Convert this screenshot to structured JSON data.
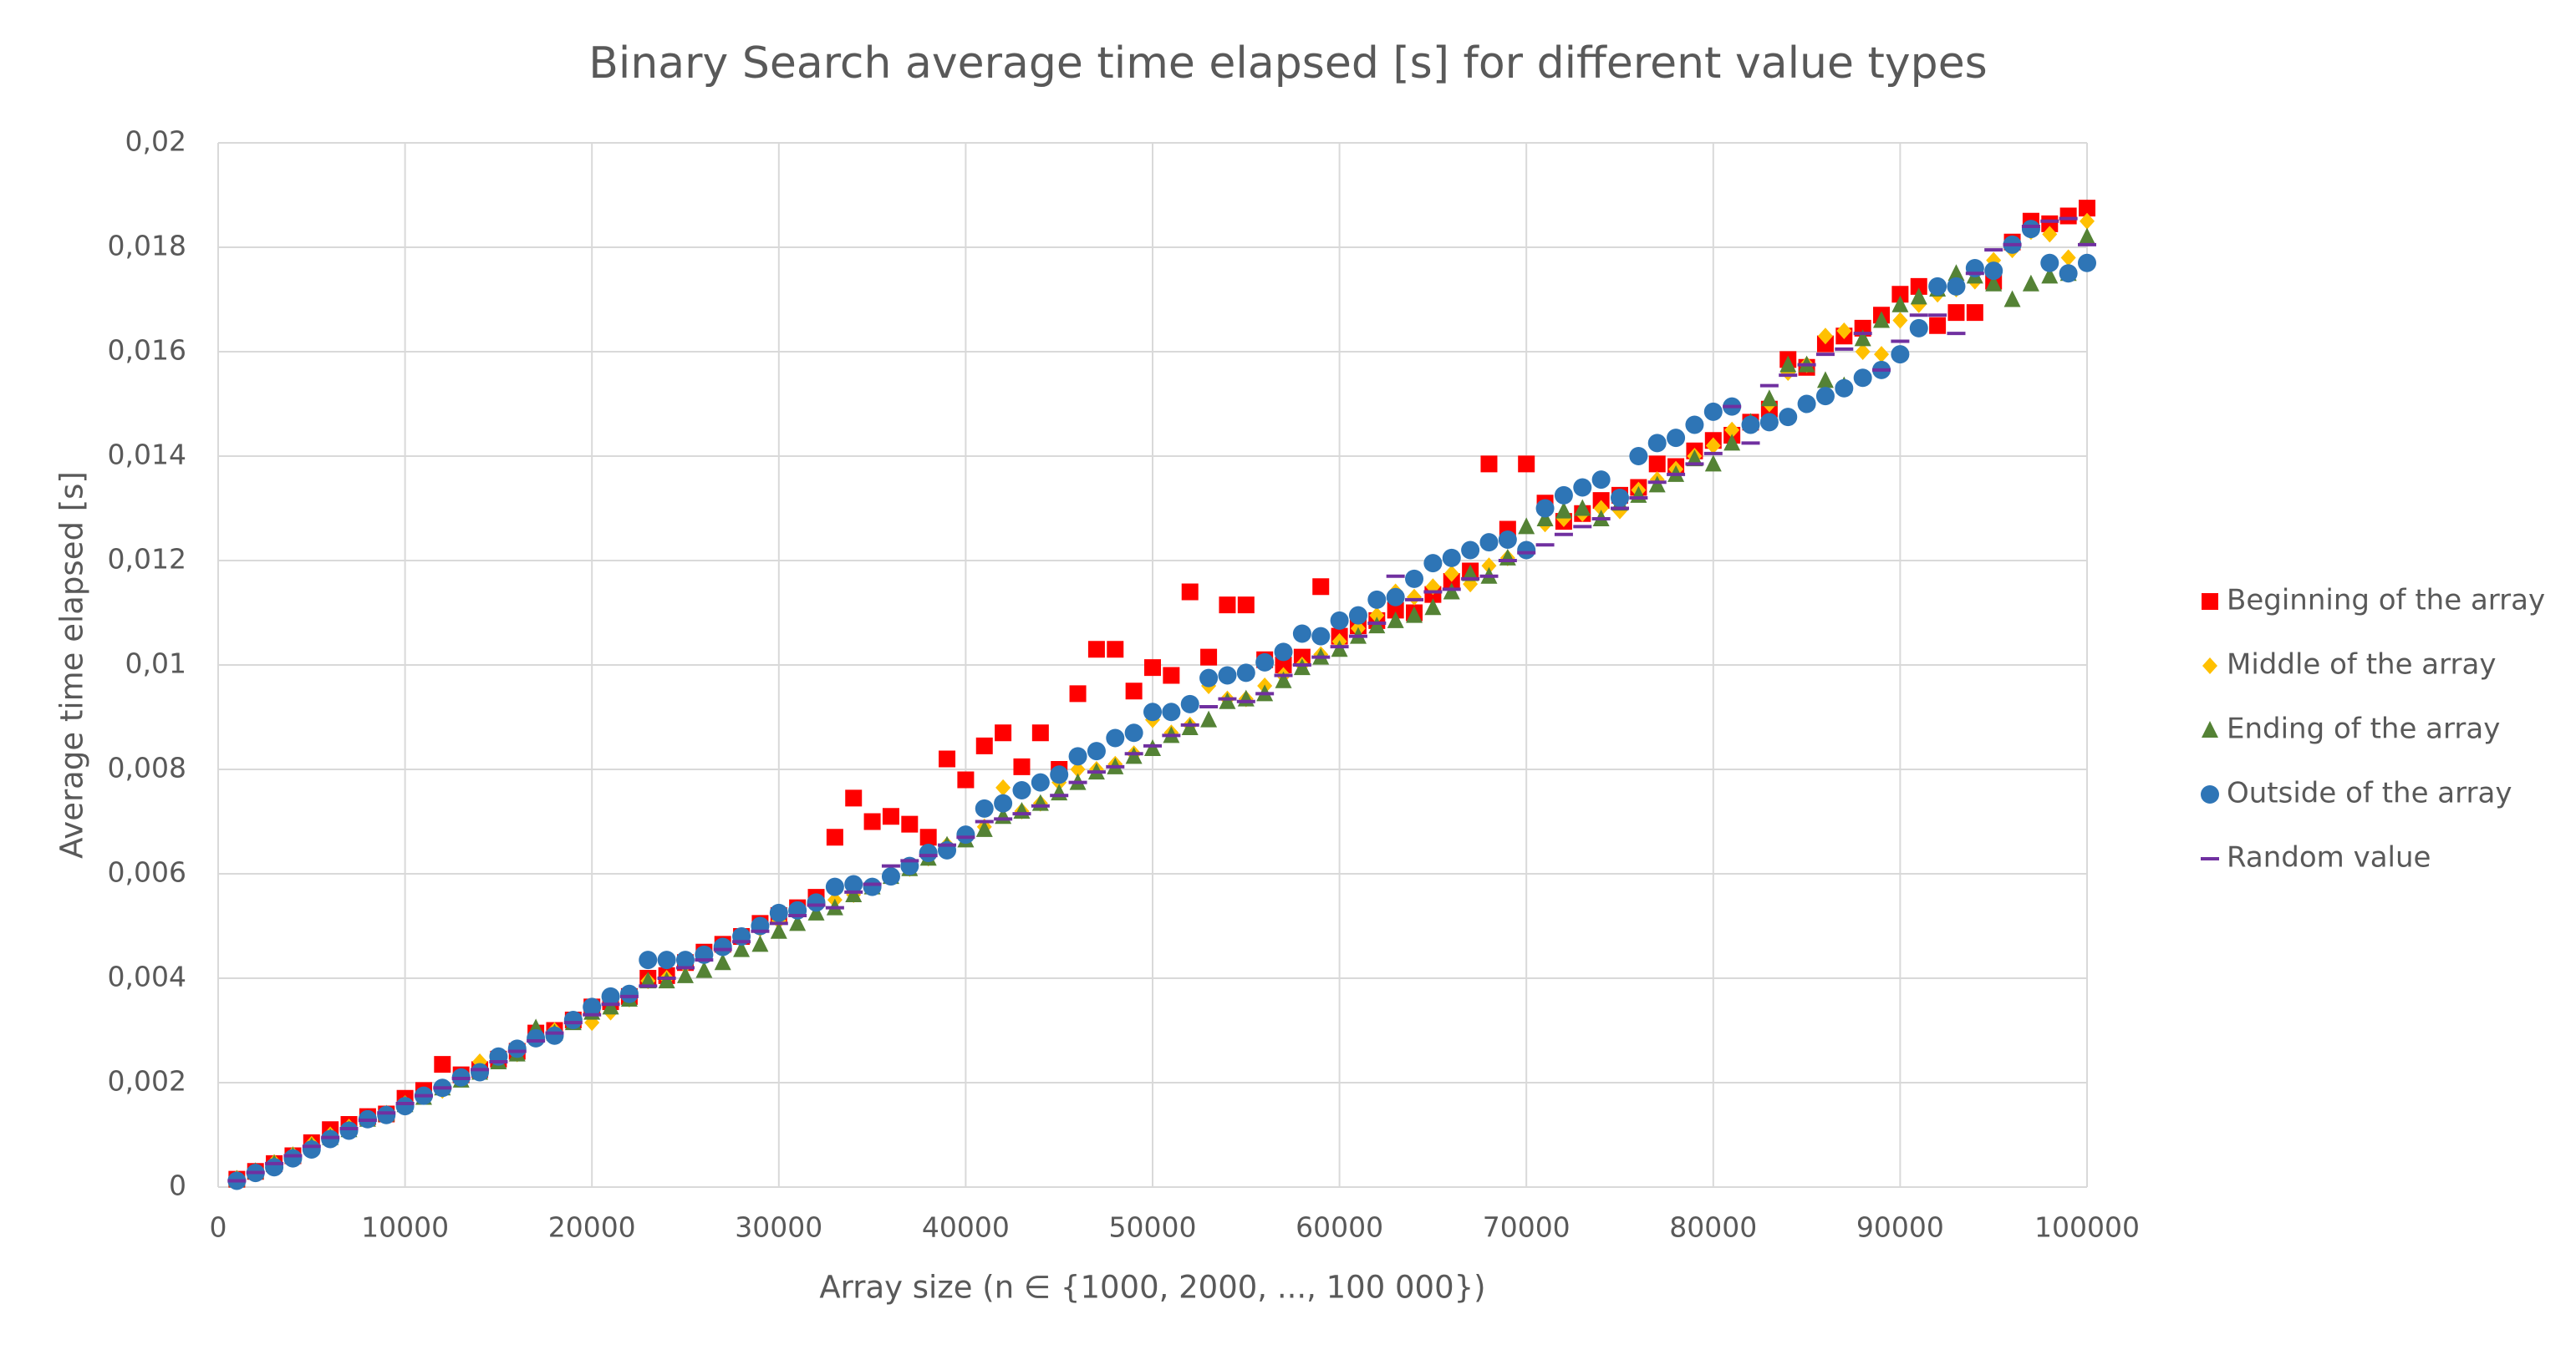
{
  "chart_data": {
    "type": "scatter",
    "title": "Binary Search average time elapsed [s] for different value types",
    "x_label": "Array size (n ∈ {1000, 2000, ..., 100 000})",
    "y_label": "Average time elapsed [s]",
    "grid": true,
    "legend": "right",
    "xlim": [
      0,
      100000
    ],
    "xticks": [
      0,
      10000,
      20000,
      30000,
      40000,
      50000,
      60000,
      70000,
      80000,
      90000,
      100000
    ],
    "ylim": [
      0,
      0.02
    ],
    "yticks": [
      0,
      {
        "value": 0.002,
        "label": "0,002"
      },
      {
        "value": 0.004,
        "label": "0,004"
      },
      {
        "value": 0.006,
        "label": "0,006"
      },
      {
        "value": 0.008,
        "label": "0,008"
      },
      {
        "value": 0.01,
        "label": "0,01"
      },
      {
        "value": 0.012,
        "label": "0,012"
      },
      {
        "value": 0.014,
        "label": "0,014"
      },
      {
        "value": 0.016,
        "label": "0,016"
      },
      {
        "value": 0.018,
        "label": "0,018"
      },
      {
        "value": 0.02,
        "label": "0,02"
      }
    ],
    "x": [
      1000,
      2000,
      3000,
      4000,
      5000,
      6000,
      7000,
      8000,
      9000,
      10000,
      11000,
      12000,
      13000,
      14000,
      15000,
      16000,
      17000,
      18000,
      19000,
      20000,
      21000,
      22000,
      23000,
      24000,
      25000,
      26000,
      27000,
      28000,
      29000,
      30000,
      31000,
      32000,
      33000,
      34000,
      35000,
      36000,
      37000,
      38000,
      39000,
      40000,
      41000,
      42000,
      43000,
      44000,
      45000,
      46000,
      47000,
      48000,
      49000,
      50000,
      51000,
      52000,
      53000,
      54000,
      55000,
      56000,
      57000,
      58000,
      59000,
      60000,
      61000,
      62000,
      63000,
      64000,
      65000,
      66000,
      67000,
      68000,
      69000,
      70000,
      71000,
      72000,
      73000,
      74000,
      75000,
      76000,
      77000,
      78000,
      79000,
      80000,
      81000,
      82000,
      83000,
      84000,
      85000,
      86000,
      87000,
      88000,
      89000,
      90000,
      91000,
      92000,
      93000,
      94000,
      95000,
      96000,
      97000,
      98000,
      99000,
      100000
    ],
    "series": [
      {
        "name": "Beginning of the array",
        "color": "#ff0000",
        "marker": "square",
        "values": [
          0.00015,
          0.0003,
          0.00045,
          0.0006,
          0.00085,
          0.0011,
          0.0012,
          0.00135,
          0.0014,
          0.0017,
          0.00185,
          0.00235,
          0.00215,
          0.00225,
          0.00245,
          0.0026,
          0.00295,
          0.003,
          0.0032,
          0.00345,
          0.00355,
          0.00365,
          0.004,
          0.00405,
          0.0043,
          0.0045,
          0.00465,
          0.0048,
          0.00505,
          0.0052,
          0.00535,
          0.00555,
          0.0067,
          0.00745,
          0.007,
          0.0071,
          0.00695,
          0.0067,
          0.0082,
          0.0078,
          0.00845,
          0.0087,
          0.00805,
          0.0087,
          0.008,
          0.00945,
          0.0103,
          0.0103,
          0.0095,
          0.00995,
          0.0098,
          0.0114,
          0.01015,
          0.01115,
          0.01115,
          0.0101,
          0.01,
          0.01015,
          0.0115,
          0.01055,
          0.01075,
          0.01085,
          0.01105,
          0.011,
          0.01135,
          0.0116,
          0.0118,
          0.01385,
          0.0126,
          0.01385,
          0.0131,
          0.01275,
          0.0129,
          0.01315,
          0.01325,
          0.0134,
          0.01385,
          0.0138,
          0.0141,
          0.0143,
          0.0144,
          0.01465,
          0.0149,
          0.01585,
          0.0157,
          0.01615,
          0.0163,
          0.01645,
          0.0167,
          0.0171,
          0.01725,
          0.0165,
          0.01675,
          0.01675,
          0.01735,
          0.0181,
          0.0185,
          0.01845,
          0.0186,
          0.01875
        ]
      },
      {
        "name": "Middle of the array",
        "color": "#ffc000",
        "marker": "diamond",
        "values": [
          0.00017,
          0.0003,
          0.00047,
          0.00062,
          0.00082,
          0.001,
          0.00115,
          0.0013,
          0.0014,
          0.0016,
          0.00175,
          0.00185,
          0.0021,
          0.0024,
          0.00245,
          0.00255,
          0.00285,
          0.003,
          0.0032,
          0.00315,
          0.00335,
          0.0036,
          0.00395,
          0.004,
          0.00425,
          0.00445,
          0.0046,
          0.00475,
          0.00495,
          0.0051,
          0.0053,
          0.00545,
          0.0055,
          0.0056,
          0.00575,
          0.00595,
          0.0061,
          0.0063,
          0.00655,
          0.00675,
          0.0069,
          0.00765,
          0.0072,
          0.00735,
          0.00775,
          0.008,
          0.008,
          0.0081,
          0.0083,
          0.00895,
          0.0087,
          0.00885,
          0.0096,
          0.00935,
          0.00935,
          0.0096,
          0.0098,
          0.01,
          0.0102,
          0.01045,
          0.0107,
          0.01095,
          0.0114,
          0.0113,
          0.0115,
          0.01175,
          0.01155,
          0.0119,
          0.01205,
          0.0122,
          0.0127,
          0.0128,
          0.0129,
          0.013,
          0.01295,
          0.01335,
          0.01355,
          0.01375,
          0.014,
          0.0142,
          0.0145,
          0.01465,
          0.015,
          0.0156,
          0.01575,
          0.0163,
          0.0164,
          0.016,
          0.01595,
          0.0166,
          0.0169,
          0.0171,
          0.0172,
          0.01735,
          0.01775,
          0.01795,
          0.0183,
          0.01825,
          0.0178,
          0.0185
        ]
      },
      {
        "name": "Ending of the array",
        "color": "#548235",
        "marker": "triangle",
        "values": [
          0.00015,
          0.0003,
          0.00045,
          0.0006,
          0.00078,
          0.00095,
          0.0011,
          0.0013,
          0.0014,
          0.00158,
          0.00172,
          0.0019,
          0.00205,
          0.0022,
          0.0024,
          0.00255,
          0.00305,
          0.00295,
          0.00315,
          0.00335,
          0.00345,
          0.0036,
          0.00395,
          0.00395,
          0.00405,
          0.00415,
          0.0043,
          0.00455,
          0.00465,
          0.0049,
          0.00505,
          0.00525,
          0.00535,
          0.0056,
          0.00575,
          0.00595,
          0.0061,
          0.0063,
          0.00655,
          0.00665,
          0.00685,
          0.0071,
          0.0072,
          0.00735,
          0.00755,
          0.00775,
          0.00795,
          0.00805,
          0.00825,
          0.0084,
          0.00865,
          0.0088,
          0.00895,
          0.0093,
          0.00935,
          0.00945,
          0.0097,
          0.00995,
          0.01015,
          0.0103,
          0.01055,
          0.01075,
          0.01085,
          0.01095,
          0.0111,
          0.0114,
          0.01175,
          0.0117,
          0.01205,
          0.01265,
          0.0128,
          0.01295,
          0.013,
          0.0128,
          0.0131,
          0.01325,
          0.01345,
          0.01365,
          0.01395,
          0.01385,
          0.01425,
          0.01465,
          0.0151,
          0.01575,
          0.01575,
          0.01545,
          0.01535,
          0.01625,
          0.0166,
          0.0169,
          0.01705,
          0.0172,
          0.0175,
          0.01745,
          0.0173,
          0.017,
          0.0173,
          0.01745,
          0.0175,
          0.0182
        ]
      },
      {
        "name": "Outside of the array",
        "color": "#2e75b6",
        "marker": "circle",
        "values": [
          0.00012,
          0.00027,
          0.00038,
          0.00055,
          0.00072,
          0.00092,
          0.00108,
          0.0013,
          0.00138,
          0.00155,
          0.00175,
          0.0019,
          0.0021,
          0.0022,
          0.0025,
          0.00265,
          0.00285,
          0.0029,
          0.0032,
          0.00345,
          0.00365,
          0.0037,
          0.00435,
          0.00435,
          0.00435,
          0.00445,
          0.0046,
          0.0048,
          0.005,
          0.00525,
          0.0053,
          0.00545,
          0.00575,
          0.0058,
          0.00575,
          0.00595,
          0.00615,
          0.0064,
          0.00645,
          0.00675,
          0.00725,
          0.00735,
          0.0076,
          0.00775,
          0.0079,
          0.00825,
          0.00835,
          0.0086,
          0.0087,
          0.0091,
          0.0091,
          0.00925,
          0.00975,
          0.0098,
          0.00985,
          0.01005,
          0.01025,
          0.0106,
          0.01055,
          0.01085,
          0.01095,
          0.01125,
          0.0113,
          0.01165,
          0.01195,
          0.01205,
          0.0122,
          0.01235,
          0.0124,
          0.0122,
          0.013,
          0.01325,
          0.0134,
          0.01355,
          0.0132,
          0.014,
          0.01425,
          0.01435,
          0.0146,
          0.01485,
          0.01495,
          0.0146,
          0.01465,
          0.01475,
          0.015,
          0.01515,
          0.0153,
          0.0155,
          0.01565,
          0.01595,
          0.01645,
          0.01725,
          0.01725,
          0.0176,
          0.01755,
          0.01805,
          0.01835,
          0.0177,
          0.0175,
          0.0177
        ]
      },
      {
        "name": "Random value",
        "color": "#7030a0",
        "marker": "dash",
        "values": [
          0.00012,
          0.00028,
          0.00045,
          0.0006,
          0.00078,
          0.00095,
          0.00112,
          0.00128,
          0.00142,
          0.0016,
          0.00175,
          0.0019,
          0.00208,
          0.00225,
          0.0024,
          0.0026,
          0.0028,
          0.00295,
          0.00315,
          0.0033,
          0.0035,
          0.00365,
          0.00385,
          0.004,
          0.0042,
          0.00435,
          0.00455,
          0.0047,
          0.0049,
          0.00505,
          0.0052,
          0.0054,
          0.00535,
          0.00565,
          0.0058,
          0.00615,
          0.00625,
          0.00635,
          0.00655,
          0.0067,
          0.007,
          0.00705,
          0.00715,
          0.0073,
          0.0075,
          0.00775,
          0.00795,
          0.00805,
          0.0083,
          0.00845,
          0.00865,
          0.00885,
          0.0092,
          0.00935,
          0.0093,
          0.00945,
          0.0098,
          0.01,
          0.01015,
          0.01035,
          0.01055,
          0.0108,
          0.0117,
          0.01125,
          0.0114,
          0.01145,
          0.01165,
          0.0117,
          0.012,
          0.01215,
          0.0123,
          0.0125,
          0.01265,
          0.0128,
          0.013,
          0.0132,
          0.0135,
          0.01365,
          0.01385,
          0.01405,
          0.01495,
          0.01425,
          0.01535,
          0.01555,
          0.01575,
          0.01595,
          0.01605,
          0.01635,
          0.01565,
          0.0162,
          0.0167,
          0.0167,
          0.01635,
          0.0175,
          0.01795,
          0.01805,
          0.0184,
          0.0185,
          0.01855,
          0.01805
        ]
      }
    ]
  }
}
